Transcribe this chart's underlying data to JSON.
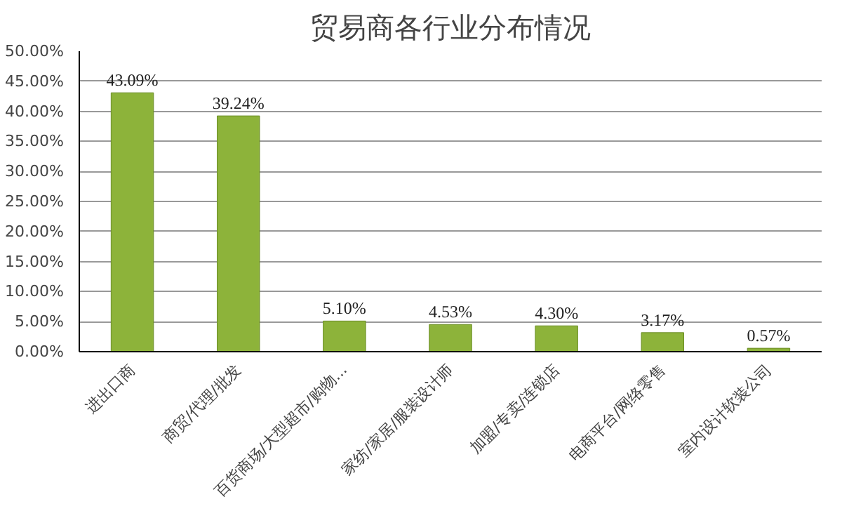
{
  "chart_data": {
    "type": "bar",
    "title": "贸易商各行业分布情况",
    "categories": [
      "进出口商",
      "商贸/代理/批发",
      "百货商场/大型超市/购物...",
      "家纺/家居/服装设计师",
      "加盟/专卖/连锁店",
      "电商平台/网络零售",
      "室内设计软装公司"
    ],
    "values": [
      43.09,
      39.24,
      5.1,
      4.53,
      4.3,
      3.17,
      0.57
    ],
    "value_labels": [
      "43.09%",
      "39.24%",
      "5.10%",
      "4.53%",
      "4.30%",
      "3.17%",
      "0.57%"
    ],
    "color": "#8db33a",
    "ylim": [
      0,
      50
    ],
    "yticks": [
      {
        "value": 0,
        "label": "0.00%"
      },
      {
        "value": 5,
        "label": "5.00%"
      },
      {
        "value": 10,
        "label": "10.00%"
      },
      {
        "value": 15,
        "label": "15.00%"
      },
      {
        "value": 20,
        "label": "20.00%"
      },
      {
        "value": 25,
        "label": "25.00%"
      },
      {
        "value": 30,
        "label": "30.00%"
      },
      {
        "value": 35,
        "label": "35.00%"
      },
      {
        "value": 40,
        "label": "40.00%"
      },
      {
        "value": 45,
        "label": "45.00%"
      },
      {
        "value": 50,
        "label": "50.00%"
      }
    ],
    "grid": "y"
  }
}
